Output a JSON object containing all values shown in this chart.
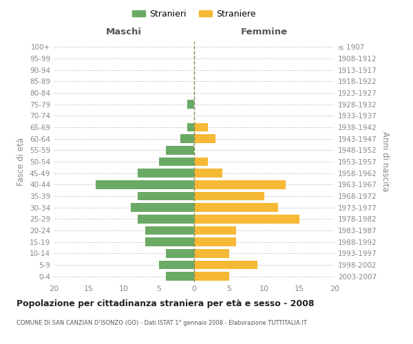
{
  "age_groups": [
    "0-4",
    "5-9",
    "10-14",
    "15-19",
    "20-24",
    "25-29",
    "30-34",
    "35-39",
    "40-44",
    "45-49",
    "50-54",
    "55-59",
    "60-64",
    "65-69",
    "70-74",
    "75-79",
    "80-84",
    "85-89",
    "90-94",
    "95-99",
    "100+"
  ],
  "birth_years": [
    "2003-2007",
    "1998-2002",
    "1993-1997",
    "1988-1992",
    "1983-1987",
    "1978-1982",
    "1973-1977",
    "1968-1972",
    "1963-1967",
    "1958-1962",
    "1953-1957",
    "1948-1952",
    "1943-1947",
    "1938-1942",
    "1933-1937",
    "1928-1932",
    "1923-1927",
    "1918-1922",
    "1913-1917",
    "1908-1912",
    "≤ 1907"
  ],
  "maschi": [
    4,
    5,
    4,
    7,
    7,
    8,
    9,
    8,
    14,
    8,
    5,
    4,
    2,
    1,
    0,
    1,
    0,
    0,
    0,
    0,
    0
  ],
  "femmine": [
    5,
    9,
    5,
    6,
    6,
    15,
    12,
    10,
    13,
    4,
    2,
    0,
    3,
    2,
    0,
    0,
    0,
    0,
    0,
    0,
    0
  ],
  "color_maschi": "#6aaa64",
  "color_femmine": "#f5b935",
  "xlim": 20,
  "title": "Popolazione per cittadinanza straniera per età e sesso - 2008",
  "subtitle": "COMUNE DI SAN CANZIAN D’ISONZO (GO) - Dati ISTAT 1° gennaio 2008 - Elaborazione TUTTITALIA.IT",
  "ylabel_left": "Fasce di età",
  "ylabel_right": "Anni di nascita",
  "label_maschi": "Stranieri",
  "label_femmine": "Straniere",
  "header_left": "Maschi",
  "header_right": "Femmine",
  "bg_color": "#ffffff",
  "grid_color": "#cccccc",
  "tick_color": "#888888",
  "bar_height": 0.75
}
